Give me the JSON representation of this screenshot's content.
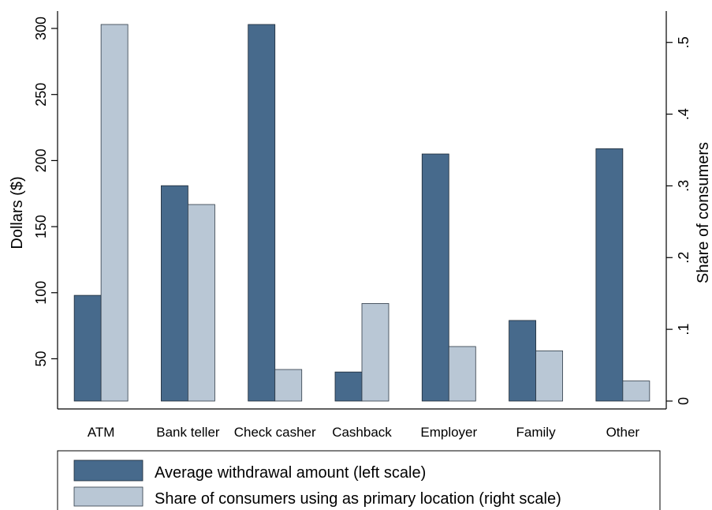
{
  "chart_data": {
    "type": "bar",
    "categories": [
      "ATM",
      "Bank teller",
      "Check casher",
      "Cashback",
      "Employer",
      "Family",
      "Other"
    ],
    "series": [
      {
        "name": "Average withdrawal amount (left scale)",
        "axis": "left",
        "color": "#476a8c",
        "values": [
          98,
          181,
          303,
          40,
          205,
          79,
          209
        ]
      },
      {
        "name": "Share of consumers using as primary location (right scale)",
        "axis": "right",
        "color": "#b9c7d5",
        "values": [
          0.525,
          0.274,
          0.044,
          0.136,
          0.076,
          0.07,
          0.028
        ]
      }
    ],
    "ylabel": "Dollars ($)",
    "y2label": "Share of consumers",
    "ylim": [
      18,
      303
    ],
    "y2lim": [
      0,
      0.525
    ],
    "yticks": [
      50,
      100,
      150,
      200,
      250,
      300
    ],
    "ytick_labels": [
      "50",
      "100",
      "150",
      "200",
      "250",
      "300"
    ],
    "y2ticks": [
      0,
      0.1,
      0.2,
      0.3,
      0.4,
      0.5
    ],
    "y2tick_labels": [
      "0",
      ".1",
      ".2",
      ".3",
      ".4",
      ".5"
    ],
    "grid": false,
    "legend_position": "bottom"
  }
}
